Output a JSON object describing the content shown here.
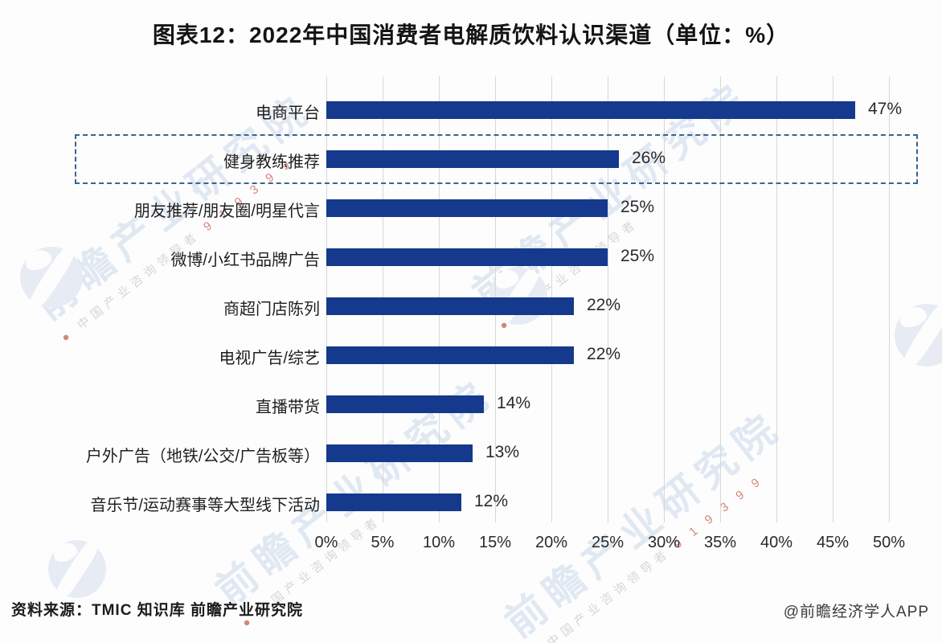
{
  "title": "图表12：2022年中国消费者电解质饮料认识渠道（单位：%）",
  "chart_data": {
    "type": "bar",
    "orientation": "horizontal",
    "title": "图表12：2022年中国消费者电解质饮料认识渠道（单位：%）",
    "categories": [
      "电商平台",
      "健身教练推荐",
      "朋友推荐/朋友圈/明星代言",
      "微博/小红书品牌广告",
      "商超门店陈列",
      "电视广告/综艺",
      "直播带货",
      "户外广告（地铁/公交/广告板等）",
      "音乐节/运动赛事等大型线下活动"
    ],
    "values": [
      47,
      26,
      25,
      25,
      22,
      22,
      14,
      13,
      12
    ],
    "value_labels": [
      "47%",
      "26%",
      "25%",
      "25%",
      "22%",
      "22%",
      "14%",
      "13%",
      "12%"
    ],
    "x_ticks": [
      "0%",
      "5%",
      "10%",
      "15%",
      "20%",
      "25%",
      "30%",
      "35%",
      "40%",
      "45%",
      "50%"
    ],
    "xlim": [
      0,
      50
    ],
    "ylabel": "",
    "xlabel": "",
    "grid": true,
    "legend": false,
    "highlight_index": 1,
    "bar_color": "#15398c",
    "highlight_border_color": "#3a648e",
    "grid_color": "#d7d7d7"
  },
  "footer": {
    "source": "资料来源：TMIC 知识库 前瞻产业研究院",
    "credit": "@前瞻经济学人APP"
  },
  "watermark": {
    "brand": "前瞻产业研究院",
    "tagline": "中国产业咨询领导者",
    "color": "#c9d7ea"
  }
}
